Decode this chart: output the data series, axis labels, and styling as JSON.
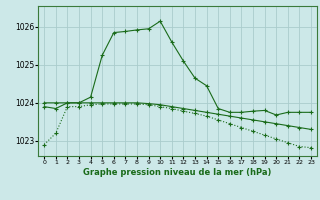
{
  "title": "Graphe pression niveau de la mer (hPa)",
  "background_color": "#cce8e8",
  "grid_color": "#aacccc",
  "line_color": "#1a6b1a",
  "ylim": [
    1022.6,
    1026.55
  ],
  "yticks": [
    1023,
    1024,
    1025,
    1026
  ],
  "xlim": [
    -0.5,
    23.5
  ],
  "series": [
    {
      "x": [
        0,
        1,
        2,
        3,
        4,
        5,
        6,
        7,
        8,
        9,
        10,
        11,
        12,
        13,
        14,
        15,
        16,
        17,
        18,
        19,
        20,
        21,
        22,
        23
      ],
      "y": [
        1023.9,
        1023.85,
        1024.0,
        1024.0,
        1024.15,
        1025.25,
        1025.85,
        1025.88,
        1025.92,
        1025.95,
        1026.15,
        1025.6,
        1025.1,
        1024.65,
        1024.45,
        1023.85,
        1023.75,
        1023.75,
        1023.78,
        1023.8,
        1023.68,
        1023.75,
        1023.75,
        1023.75
      ],
      "style": "-",
      "marker": "+"
    },
    {
      "x": [
        0,
        1,
        2,
        3,
        4,
        5,
        6,
        7,
        8,
        9,
        10,
        11,
        12,
        13,
        14,
        15,
        16,
        17,
        18,
        19,
        20,
        21,
        22,
        23
      ],
      "y": [
        1024.0,
        1024.0,
        1024.0,
        1024.0,
        1024.0,
        1024.0,
        1024.0,
        1024.0,
        1024.0,
        1023.98,
        1023.95,
        1023.9,
        1023.85,
        1023.8,
        1023.75,
        1023.7,
        1023.65,
        1023.6,
        1023.55,
        1023.5,
        1023.45,
        1023.4,
        1023.35,
        1023.3
      ],
      "style": "-",
      "marker": "+"
    },
    {
      "x": [
        0,
        1,
        2,
        3,
        4,
        5,
        6,
        7,
        8,
        9,
        10,
        11,
        12,
        13,
        14,
        15,
        16,
        17,
        18,
        19,
        20,
        21,
        22,
        23
      ],
      "y": [
        1022.9,
        1023.2,
        1023.9,
        1023.9,
        1023.95,
        1023.97,
        1023.97,
        1023.97,
        1023.97,
        1023.95,
        1023.9,
        1023.85,
        1023.78,
        1023.72,
        1023.65,
        1023.55,
        1023.45,
        1023.35,
        1023.25,
        1023.15,
        1023.05,
        1022.95,
        1022.85,
        1022.82
      ],
      "style": ":",
      "marker": "+"
    }
  ]
}
